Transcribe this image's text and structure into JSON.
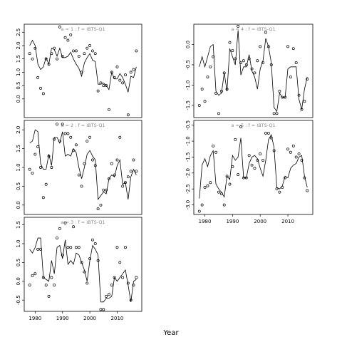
{
  "chart_data": {
    "type": "line",
    "xlabel": "Year",
    "x_ticks": [
      1980,
      1990,
      2000,
      2010
    ],
    "panels": [
      {
        "title": "a = 1  :  f = IBTS-Q1",
        "y_ticks": [
          "0.0",
          "0.5",
          "1.0",
          "1.5",
          "2.0",
          "2.5"
        ],
        "ylim": [
          -0.7,
          2.8
        ],
        "years": [
          1978,
          1979,
          1980,
          1981,
          1982,
          1983,
          1984,
          1985,
          1986,
          1987,
          1988,
          1989,
          1990,
          1991,
          1992,
          1993,
          1994,
          1995,
          1996,
          1997,
          1998,
          1999,
          2000,
          2001,
          2002,
          2003,
          2004,
          2005,
          2006,
          2007,
          2008,
          2009,
          2010,
          2011,
          2012,
          2013,
          2014,
          2015,
          2016,
          2017
        ],
        "observed": [
          1.7,
          1.5,
          1.9,
          0.8,
          0.4,
          0.2,
          1.5,
          1.3,
          1.7,
          1.9,
          1.5,
          2.7,
          1.6,
          2.3,
          2.2,
          2.4,
          1.8,
          1.8,
          1.6,
          1.0,
          1.7,
          1.9,
          2.0,
          1.8,
          1.7,
          0.3,
          0.6,
          0.5,
          0.5,
          -0.4,
          1.0,
          0.8,
          1.2,
          0.7,
          0.6,
          0.9,
          -0.6,
          1.0,
          1.1,
          1.8
        ],
        "fitted": [
          2.0,
          2.2,
          2.0,
          1.3,
          1.1,
          1.2,
          1.55,
          1.3,
          1.9,
          1.85,
          1.6,
          1.9,
          1.55,
          1.55,
          1.6,
          1.75,
          1.5,
          1.3,
          1.15,
          0.85,
          1.35,
          1.55,
          1.7,
          1.45,
          1.4,
          0.55,
          0.55,
          0.6,
          0.5,
          0.35,
          1.0,
          0.75,
          0.75,
          0.95,
          0.8,
          0.55,
          0.25,
          0.85,
          0.8,
          1.2
        ]
      },
      {
        "title": "a = 2  :  f = IBTS-Q1",
        "y_ticks": [
          "0.0",
          "0.5",
          "1.0",
          "1.5",
          "2.0"
        ],
        "ylim": [
          -0.25,
          2.25
        ],
        "years": [
          1978,
          1979,
          1980,
          1981,
          1982,
          1983,
          1984,
          1985,
          1986,
          1987,
          1988,
          1989,
          1990,
          1991,
          1992,
          1993,
          1994,
          1995,
          1996,
          1997,
          1998,
          1999,
          2000,
          2001,
          2002,
          2003,
          2004,
          2005,
          2006,
          2007,
          2008,
          2009,
          2010,
          2011,
          2012,
          2013,
          2014,
          2015,
          2016,
          2017
        ],
        "observed": [
          0.95,
          0.85,
          1.35,
          1.55,
          1.0,
          0.2,
          0.55,
          1.3,
          1.0,
          1.75,
          2.15,
          1.7,
          2.15,
          1.9,
          1.9,
          1.8,
          1.45,
          1.6,
          0.8,
          0.5,
          1.1,
          1.7,
          1.8,
          1.2,
          1.05,
          -0.1,
          0.0,
          0.4,
          0.4,
          0.7,
          1.1,
          0.8,
          1.2,
          1.8,
          0.5,
          0.6,
          0.75,
          0.9,
          1.2,
          0.9
        ],
        "fitted": [
          1.65,
          1.7,
          2.0,
          1.95,
          1.1,
          0.95,
          0.95,
          1.35,
          1.05,
          1.8,
          1.8,
          1.65,
          1.95,
          1.3,
          1.35,
          1.3,
          1.5,
          1.4,
          1.0,
          0.7,
          1.0,
          1.35,
          1.45,
          1.3,
          1.2,
          0.15,
          0.25,
          0.35,
          0.3,
          0.7,
          0.8,
          0.75,
          1.05,
          1.2,
          0.55,
          0.6,
          0.15,
          0.75,
          0.95,
          0.8
        ]
      },
      {
        "title": "a = 3  :  f = IBTS-Q1",
        "y_ticks": [
          "-0.5",
          "0.0",
          "0.5",
          "1.0",
          "1.5"
        ],
        "ylim": [
          -0.8,
          1.7
        ],
        "years": [
          1978,
          1979,
          1980,
          1981,
          1982,
          1983,
          1984,
          1985,
          1986,
          1987,
          1988,
          1989,
          1990,
          1991,
          1992,
          1993,
          1994,
          1995,
          1996,
          1997,
          1998,
          1999,
          2000,
          2001,
          2002,
          2003,
          2004,
          2005,
          2006,
          2007,
          2008,
          2009,
          2010,
          2011,
          2012,
          2013,
          2014,
          2015,
          2016,
          2017
        ],
        "observed": [
          -0.1,
          0.15,
          0.2,
          0.85,
          0.85,
          0.1,
          -0.1,
          -0.4,
          0.1,
          -0.1,
          1.15,
          1.4,
          0.7,
          1.55,
          0.9,
          0.9,
          1.45,
          0.9,
          0.9,
          0.5,
          0.25,
          -0.05,
          0.6,
          1.1,
          1.0,
          0.55,
          -0.75,
          -0.75,
          -0.4,
          -0.35,
          -0.1,
          0.1,
          0.9,
          0.5,
          0.1,
          0.9,
          -0.05,
          -0.5,
          -0.1,
          0.1
        ],
        "fitted": [
          0.85,
          0.75,
          0.9,
          1.15,
          1.15,
          0.1,
          0.05,
          0.0,
          0.55,
          0.2,
          0.9,
          0.95,
          0.6,
          1.1,
          0.45,
          0.55,
          0.45,
          0.75,
          0.7,
          0.5,
          0.3,
          0.0,
          0.55,
          0.95,
          0.85,
          0.7,
          -0.55,
          -0.55,
          -0.45,
          -0.45,
          -0.4,
          0.1,
          0.0,
          0.1,
          0.2,
          0.3,
          -0.1,
          -0.55,
          0.0,
          0.05
        ]
      },
      {
        "title": "a = 4  :  f = IBTS-Q1",
        "y_ticks": [
          "-1.5",
          "-1.0",
          "-0.5",
          "0.0"
        ],
        "ylim": [
          -1.8,
          0.5
        ],
        "years": [
          1978,
          1979,
          1980,
          1981,
          1982,
          1983,
          1984,
          1985,
          1986,
          1987,
          1988,
          1989,
          1990,
          1991,
          1992,
          1993,
          1994,
          1995,
          1996,
          1997,
          1998,
          1999,
          2000,
          2001,
          2002,
          2003,
          2004,
          2005,
          2006,
          2007,
          2008,
          2009,
          2010,
          2011,
          2012,
          2013,
          2014,
          2015,
          2016,
          2017
        ],
        "observed": [
          -1.5,
          -1.1,
          -1.4,
          -0.8,
          -0.55,
          -0.3,
          -1.2,
          -1.7,
          -1.15,
          -0.7,
          -1.1,
          0.05,
          -0.15,
          -0.35,
          0.45,
          -0.45,
          -0.4,
          -0.5,
          -0.35,
          -0.6,
          -0.7,
          -0.4,
          -0.05,
          -0.45,
          0.3,
          -0.05,
          -0.5,
          -1.7,
          -1.7,
          -1.15,
          -1.3,
          -1.3,
          -0.05,
          -0.8,
          -0.1,
          -0.45,
          -1.25,
          -1.6,
          -1.4,
          -0.85
        ],
        "fitted": [
          -0.55,
          -0.3,
          -0.55,
          -0.3,
          -0.05,
          0.0,
          -1.15,
          -1.25,
          -1.2,
          -0.7,
          -1.15,
          -0.1,
          -0.3,
          -0.5,
          0.35,
          -0.75,
          -0.55,
          -0.55,
          -0.25,
          -0.65,
          -0.8,
          -1.1,
          -0.6,
          -0.4,
          0.15,
          -0.05,
          -0.45,
          -1.55,
          -1.65,
          -1.2,
          -1.3,
          -1.3,
          -0.6,
          -0.55,
          -0.55,
          -0.55,
          -1.35,
          -1.6,
          -1.1,
          -0.8
        ]
      },
      {
        "title": "a = 5  :  f = IBTS-Q1",
        "y_ticks": [
          "-3.0",
          "-2.5",
          "-2.0",
          "-1.5",
          "-1.0",
          "-0.5"
        ],
        "ylim": [
          -3.3,
          -0.35
        ],
        "years": [
          1978,
          1979,
          1980,
          1981,
          1982,
          1983,
          1984,
          1985,
          1986,
          1987,
          1988,
          1989,
          1990,
          1991,
          1992,
          1993,
          1994,
          1995,
          1996,
          1997,
          1998,
          1999,
          2000,
          2001,
          2002,
          2003,
          2004,
          2005,
          2006,
          2007,
          2008,
          2009,
          2010,
          2011,
          2012,
          2013,
          2014,
          2015,
          2016,
          2017
        ],
        "observed": [
          -3.2,
          -3.0,
          -2.45,
          -2.4,
          -2.3,
          -1.15,
          -1.35,
          -2.6,
          -2.65,
          -3.0,
          -2.1,
          -2.35,
          -1.8,
          -0.95,
          -2.05,
          -0.55,
          -2.15,
          -2.15,
          -1.45,
          -1.75,
          -1.85,
          -1.6,
          -1.4,
          -1.6,
          -0.75,
          -0.75,
          -0.9,
          -1.3,
          -2.5,
          -2.6,
          -2.45,
          -2.15,
          -1.25,
          -1.35,
          -1.15,
          -1.5,
          -1.4,
          -1.6,
          -2.15,
          -2.55
        ],
        "fitted": [
          -2.8,
          -1.75,
          -1.55,
          -1.8,
          -1.45,
          -1.3,
          -2.35,
          -2.5,
          -2.6,
          -2.75,
          -2.1,
          -2.2,
          -1.45,
          -1.6,
          -1.5,
          -0.9,
          -2.15,
          -2.15,
          -1.7,
          -1.5,
          -1.45,
          -1.55,
          -1.85,
          -2.1,
          -1.6,
          -0.95,
          -0.8,
          -1.2,
          -2.45,
          -2.5,
          -2.4,
          -2.1,
          -2.15,
          -1.85,
          -1.75,
          -1.7,
          -1.5,
          -1.45,
          -2.1,
          -2.45
        ]
      }
    ]
  }
}
